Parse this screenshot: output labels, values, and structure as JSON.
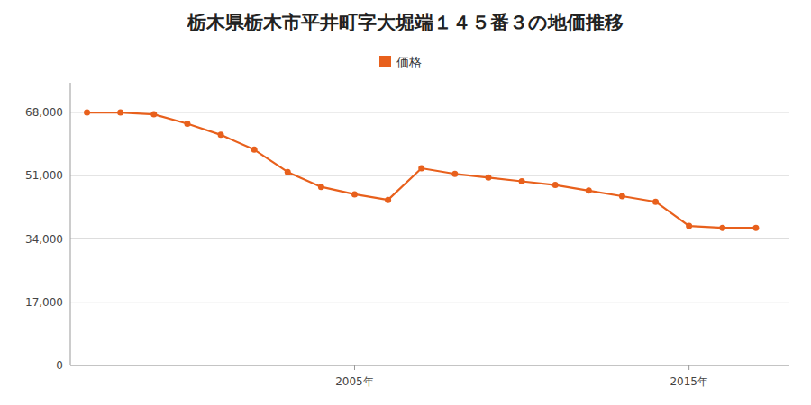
{
  "chart_data": {
    "type": "line",
    "title": "栃木県栃木市平井町字大堀端１４５番３の地価推移",
    "x": [
      1997,
      1998,
      1999,
      2000,
      2001,
      2002,
      2003,
      2004,
      2005,
      2006,
      2007,
      2008,
      2009,
      2010,
      2011,
      2012,
      2013,
      2014,
      2015,
      2016,
      2017
    ],
    "series": [
      {
        "name": "価格",
        "color": "#e8601c",
        "values": [
          68000,
          68000,
          67500,
          65000,
          62000,
          58000,
          52000,
          48000,
          46000,
          44500,
          53000,
          51500,
          50500,
          49500,
          48500,
          47000,
          45500,
          44000,
          37500,
          37000,
          37000
        ]
      }
    ],
    "xlim": [
      1996.5,
      2018
    ],
    "xticks": [
      {
        "value": 2005,
        "label": "2005年"
      },
      {
        "value": 2015,
        "label": "2015年"
      }
    ],
    "ylim": [
      0,
      76000
    ],
    "yticks": [
      0,
      {
        "value": 17000,
        "label": "17,000"
      },
      {
        "value": 34000,
        "label": "34,000"
      },
      {
        "value": 51000,
        "label": "51,000"
      },
      {
        "value": 68000,
        "label": "68,000"
      }
    ],
    "grid": true,
    "legend": "top",
    "marker": "circle"
  }
}
